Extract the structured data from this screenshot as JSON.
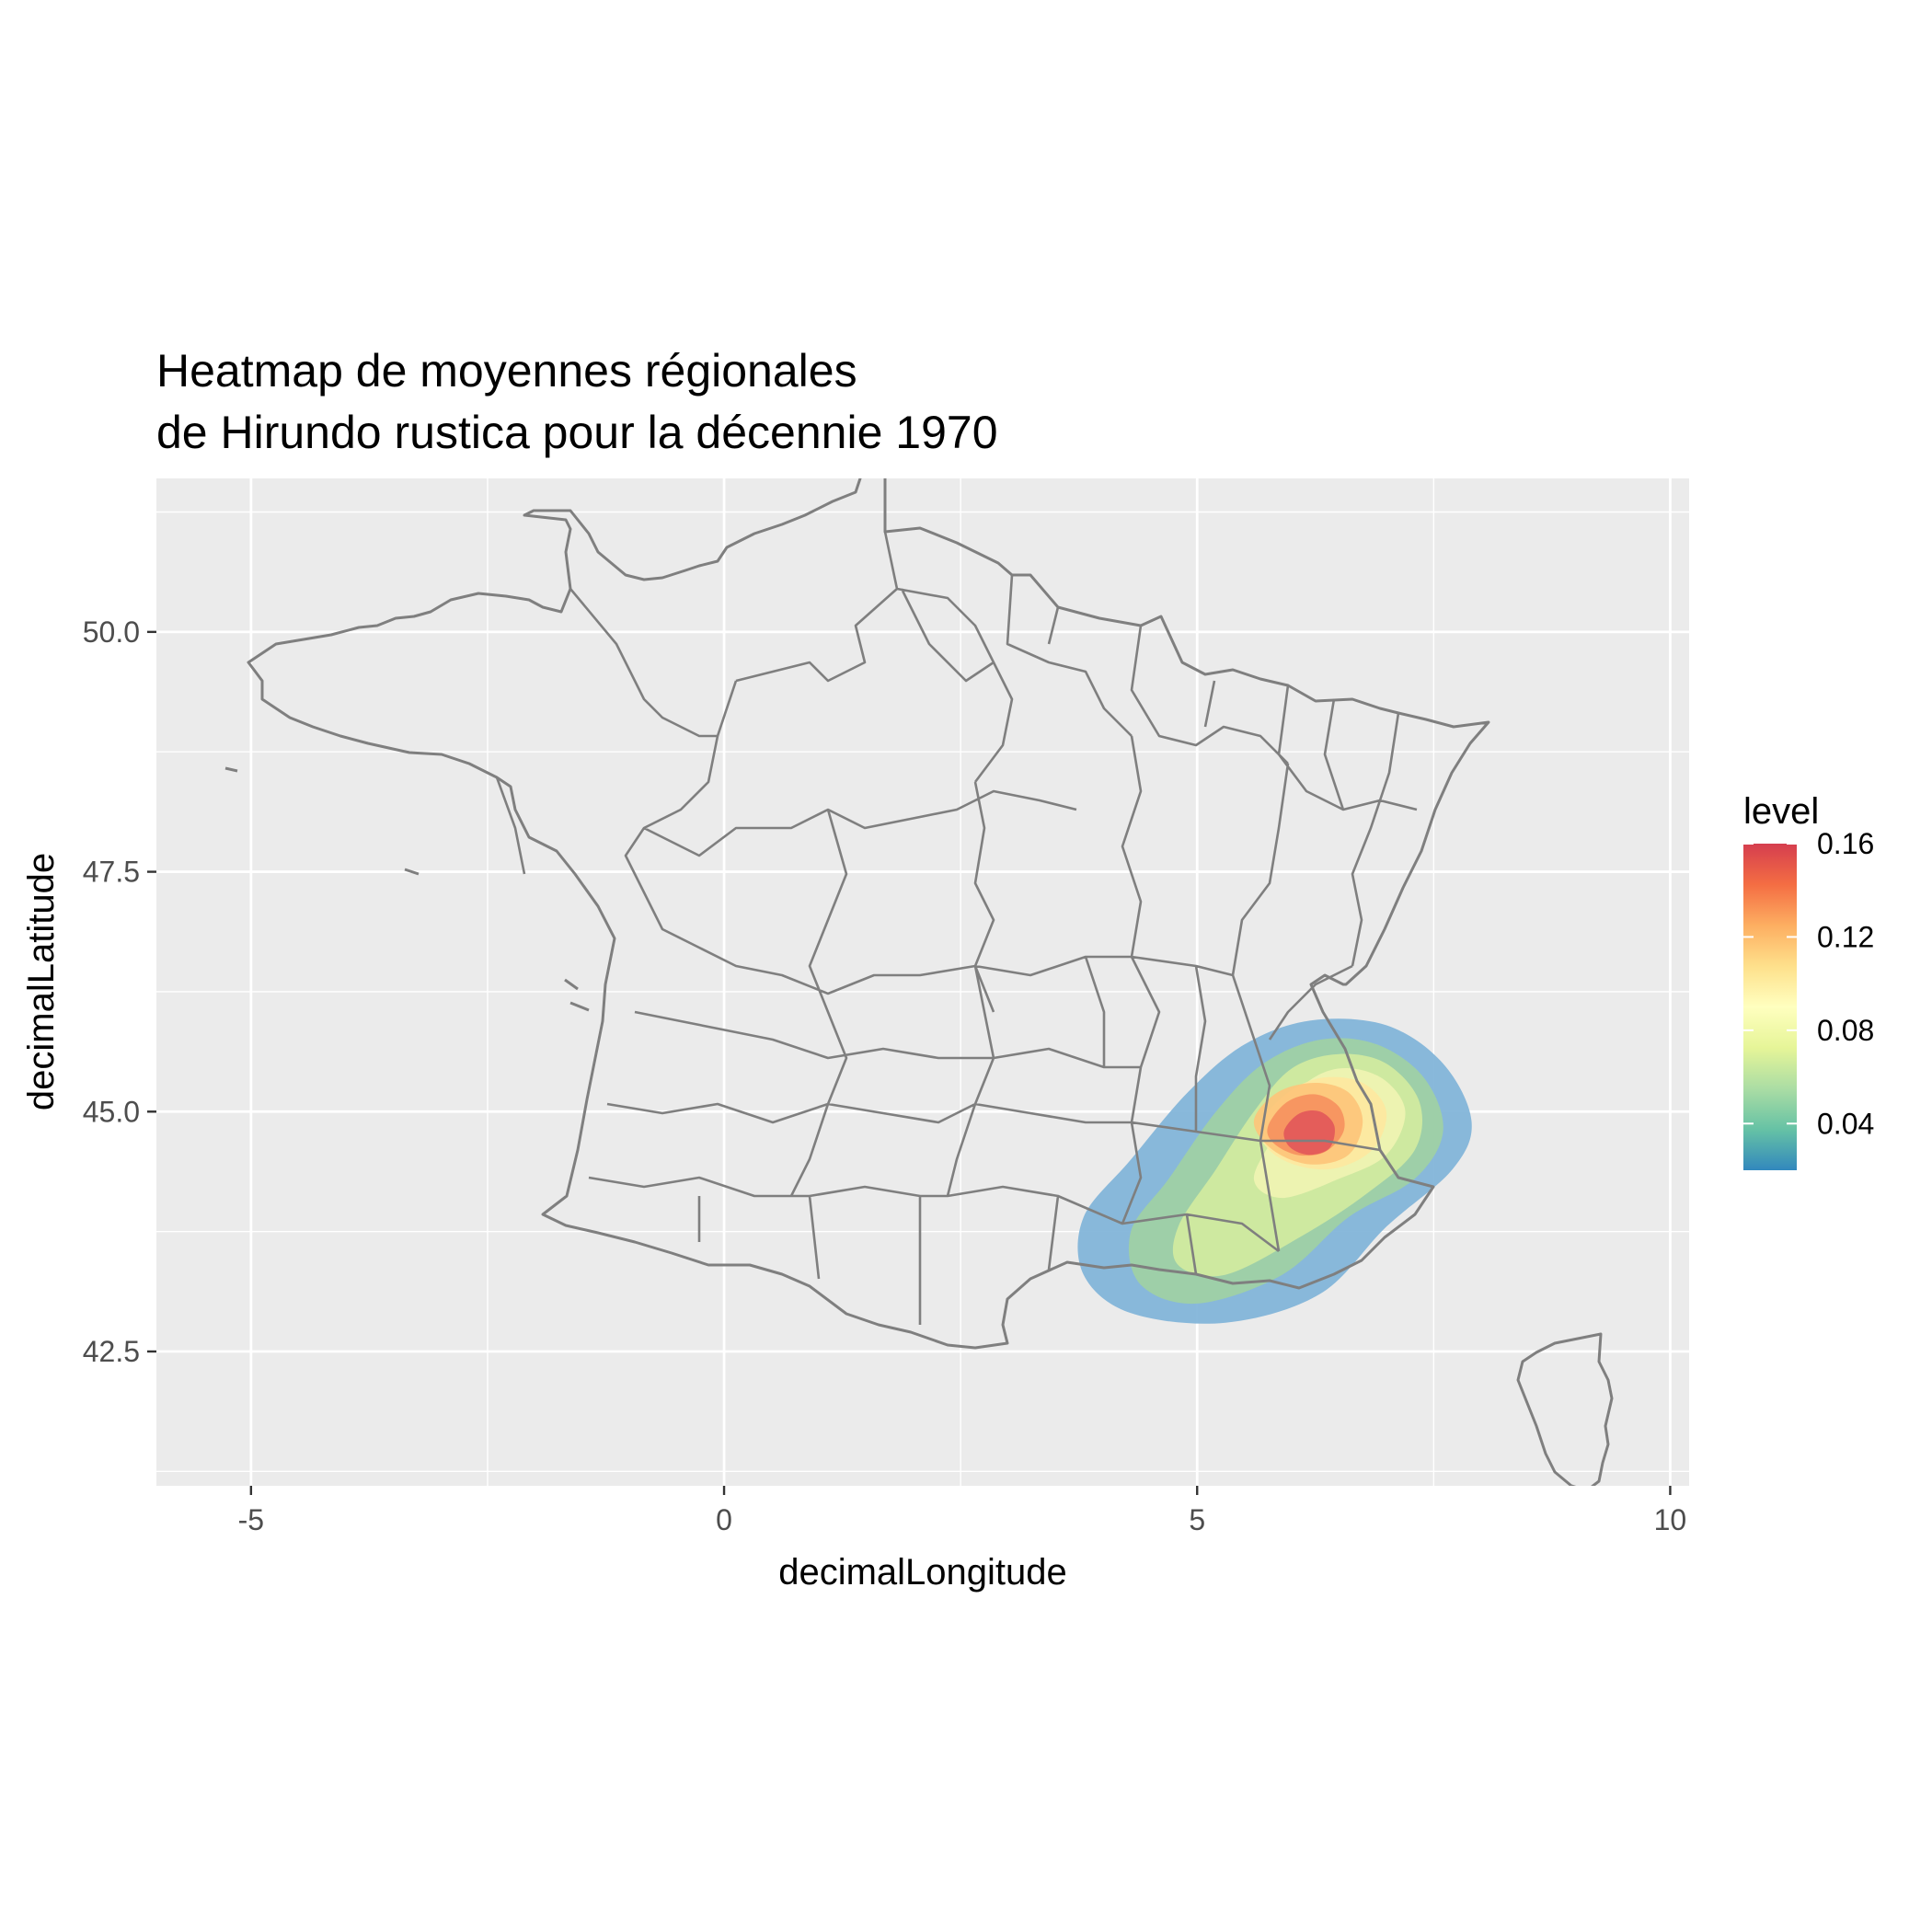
{
  "chart_data": {
    "type": "heatmap",
    "title_lines": [
      "Heatmap de moyennes régionales",
      "de Hirundo rustica pour la décennie 1970"
    ],
    "xlabel": "decimalLongitude",
    "ylabel": "decimalLatitude",
    "xlim": [
      -6.0,
      10.2
    ],
    "ylim": [
      41.1,
      51.6
    ],
    "x_ticks": [
      {
        "value": -5,
        "label": "-5"
      },
      {
        "value": 0,
        "label": "0"
      },
      {
        "value": 5,
        "label": "5"
      },
      {
        "value": 10,
        "label": "10"
      }
    ],
    "y_ticks": [
      {
        "value": 42.5,
        "label": "42.5"
      },
      {
        "value": 45.0,
        "label": "45.0"
      },
      {
        "value": 47.5,
        "label": "47.5"
      },
      {
        "value": 50.0,
        "label": "50.0"
      }
    ],
    "x_minor": [
      -2.5,
      2.5,
      7.5
    ],
    "y_minor": [
      41.25,
      43.75,
      46.25,
      48.75,
      51.25
    ],
    "grid": true,
    "legend": {
      "title": "level",
      "position": "right",
      "range": [
        0.02,
        0.16
      ],
      "ticks": [
        {
          "value": 0.04,
          "label": "0.04"
        },
        {
          "value": 0.08,
          "label": "0.08"
        },
        {
          "value": 0.12,
          "label": "0.12"
        },
        {
          "value": 0.16,
          "label": "0.16"
        }
      ],
      "colors": [
        "#3288bd",
        "#66c2a5",
        "#abdda4",
        "#e6f598",
        "#ffffbf",
        "#fee08b",
        "#fdae61",
        "#f46d43",
        "#d53e4f"
      ]
    },
    "density": {
      "peak": {
        "lon": 6.2,
        "lat": 44.75
      },
      "contours": [
        {
          "level": 0.02,
          "color": "#7fb3d8",
          "points": [
            [
              3.8,
              43.9
            ],
            [
              4.3,
              44.5
            ],
            [
              4.9,
              45.2
            ],
            [
              5.5,
              45.7
            ],
            [
              6.2,
              45.95
            ],
            [
              7.0,
              45.9
            ],
            [
              7.6,
              45.5
            ],
            [
              7.9,
              44.9
            ],
            [
              7.7,
              44.4
            ],
            [
              7.0,
              43.8
            ],
            [
              6.3,
              43.1
            ],
            [
              5.3,
              42.8
            ],
            [
              4.3,
              42.9
            ],
            [
              3.8,
              43.3
            ]
          ]
        },
        {
          "level": 0.04,
          "color": "#9fd0a4",
          "points": [
            [
              4.3,
              43.75
            ],
            [
              4.7,
              44.3
            ],
            [
              5.2,
              45.0
            ],
            [
              5.7,
              45.5
            ],
            [
              6.3,
              45.75
            ],
            [
              6.9,
              45.7
            ],
            [
              7.4,
              45.35
            ],
            [
              7.6,
              44.8
            ],
            [
              7.3,
              44.3
            ],
            [
              6.6,
              43.9
            ],
            [
              5.9,
              43.3
            ],
            [
              5.0,
              43.0
            ],
            [
              4.4,
              43.2
            ]
          ]
        },
        {
          "level": 0.06,
          "color": "#d2eca0",
          "points": [
            [
              4.8,
              43.8
            ],
            [
              5.2,
              44.4
            ],
            [
              5.6,
              45.0
            ],
            [
              6.0,
              45.45
            ],
            [
              6.5,
              45.6
            ],
            [
              7.0,
              45.5
            ],
            [
              7.35,
              45.1
            ],
            [
              7.3,
              44.6
            ],
            [
              6.8,
              44.15
            ],
            [
              6.1,
              43.7
            ],
            [
              5.3,
              43.3
            ],
            [
              4.8,
              43.4
            ]
          ]
        },
        {
          "level": 0.08,
          "color": "#f0f3b2",
          "points": [
            [
              5.6,
              44.3
            ],
            [
              5.85,
              44.8
            ],
            [
              6.1,
              45.25
            ],
            [
              6.5,
              45.45
            ],
            [
              6.95,
              45.35
            ],
            [
              7.2,
              45.0
            ],
            [
              7.0,
              44.55
            ],
            [
              6.5,
              44.3
            ],
            [
              5.9,
              44.1
            ]
          ]
        },
        {
          "level": 0.1,
          "color": "#fde8a0",
          "points": [
            [
              5.65,
              44.8
            ],
            [
              5.9,
              45.15
            ],
            [
              6.3,
              45.35
            ],
            [
              6.75,
              45.3
            ],
            [
              7.0,
              45.0
            ],
            [
              6.85,
              44.6
            ],
            [
              6.4,
              44.4
            ],
            [
              5.9,
              44.5
            ]
          ]
        },
        {
          "level": 0.12,
          "color": "#fdc47a",
          "points": [
            [
              5.6,
              44.9
            ],
            [
              5.85,
              45.2
            ],
            [
              6.25,
              45.3
            ],
            [
              6.6,
              45.2
            ],
            [
              6.75,
              44.9
            ],
            [
              6.6,
              44.55
            ],
            [
              6.2,
              44.45
            ],
            [
              5.8,
              44.6
            ]
          ]
        },
        {
          "level": 0.14,
          "color": "#f6915e",
          "points": [
            [
              5.75,
              44.85
            ],
            [
              5.95,
              45.1
            ],
            [
              6.25,
              45.18
            ],
            [
              6.5,
              45.05
            ],
            [
              6.55,
              44.8
            ],
            [
              6.35,
              44.58
            ],
            [
              6.05,
              44.55
            ],
            [
              5.8,
              44.68
            ]
          ]
        },
        {
          "level": 0.16,
          "color": "#e2585a",
          "points": [
            [
              5.92,
              44.8
            ],
            [
              6.08,
              44.98
            ],
            [
              6.3,
              45.0
            ],
            [
              6.45,
              44.85
            ],
            [
              6.4,
              44.62
            ],
            [
              6.18,
              44.55
            ],
            [
              5.98,
              44.63
            ]
          ]
        }
      ]
    }
  }
}
